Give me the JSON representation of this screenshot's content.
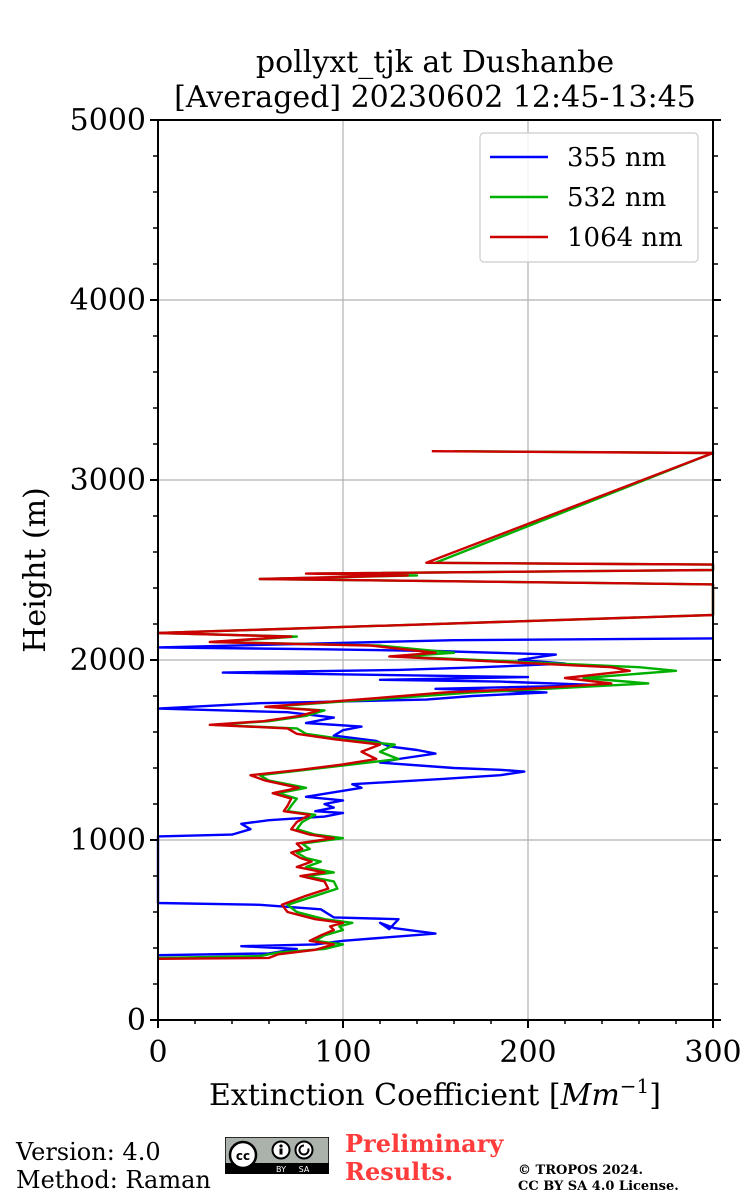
{
  "chart_data": {
    "type": "line",
    "title_line1": "pollyxt_tjk at Dushanbe",
    "title_line2": "[Averaged] 20230602 12:45-13:45",
    "xlabel": "Extinction Coefficient [",
    "xlabel_unit": "Mm",
    "xlabel_exp": "−1",
    "xlabel_close": "]",
    "ylabel": "Height (m)",
    "xlim": [
      0,
      300
    ],
    "ylim": [
      0,
      5000
    ],
    "xticks": [
      0,
      100,
      200,
      300
    ],
    "xtick_labels": [
      "0",
      "100",
      "200",
      "300"
    ],
    "yticks": [
      0,
      1000,
      2000,
      3000,
      4000,
      5000
    ],
    "ytick_labels": [
      "0",
      "1000",
      "2000",
      "3000",
      "4000",
      "5000"
    ],
    "grid": true,
    "legend_position": "top-right",
    "series": [
      {
        "name": "355 nm",
        "color": "#0000ff",
        "points": [
          [
            0,
            360
          ],
          [
            60,
            370
          ],
          [
            75,
            395
          ],
          [
            45,
            410
          ],
          [
            85,
            420
          ],
          [
            100,
            440
          ],
          [
            150,
            480
          ],
          [
            128,
            510
          ],
          [
            120,
            540
          ],
          [
            125,
            505
          ],
          [
            130,
            560
          ],
          [
            95,
            570
          ],
          [
            88,
            615
          ],
          [
            55,
            640
          ],
          [
            0,
            650
          ],
          [
            0,
            1020
          ],
          [
            40,
            1030
          ],
          [
            50,
            1060
          ],
          [
            45,
            1090
          ],
          [
            60,
            1110
          ],
          [
            90,
            1130
          ],
          [
            100,
            1150
          ],
          [
            85,
            1160
          ],
          [
            95,
            1180
          ],
          [
            90,
            1200
          ],
          [
            100,
            1220
          ],
          [
            80,
            1240
          ],
          [
            92,
            1260
          ],
          [
            110,
            1290
          ],
          [
            105,
            1310
          ],
          [
            155,
            1340
          ],
          [
            185,
            1360
          ],
          [
            198,
            1380
          ],
          [
            185,
            1390
          ],
          [
            160,
            1400
          ],
          [
            120,
            1430
          ],
          [
            130,
            1450
          ],
          [
            150,
            1480
          ],
          [
            140,
            1500
          ],
          [
            125,
            1520
          ],
          [
            118,
            1550
          ],
          [
            95,
            1580
          ],
          [
            100,
            1610
          ],
          [
            110,
            1630
          ],
          [
            80,
            1650
          ],
          [
            95,
            1680
          ],
          [
            70,
            1710
          ],
          [
            0,
            1730
          ],
          [
            55,
            1760
          ],
          [
            100,
            1770
          ],
          [
            145,
            1780
          ],
          [
            170,
            1800
          ],
          [
            210,
            1820
          ],
          [
            150,
            1840
          ],
          [
            240,
            1860
          ],
          [
            185,
            1880
          ],
          [
            120,
            1890
          ],
          [
            200,
            1905
          ],
          [
            35,
            1930
          ],
          [
            130,
            1945
          ],
          [
            175,
            1960
          ],
          [
            220,
            1980
          ],
          [
            195,
            2000
          ],
          [
            215,
            2030
          ],
          [
            150,
            2050
          ],
          [
            85,
            2060
          ],
          [
            0,
            2070
          ],
          [
            120,
            2100
          ],
          [
            160,
            2110
          ],
          [
            300,
            2120
          ]
        ]
      },
      {
        "name": "532 nm",
        "color": "#00b000",
        "points": [
          [
            0,
            345
          ],
          [
            55,
            355
          ],
          [
            65,
            375
          ],
          [
            90,
            395
          ],
          [
            100,
            420
          ],
          [
            85,
            440
          ],
          [
            90,
            470
          ],
          [
            100,
            500
          ],
          [
            98,
            520
          ],
          [
            105,
            540
          ],
          [
            90,
            560
          ],
          [
            75,
            600
          ],
          [
            70,
            640
          ],
          [
            85,
            690
          ],
          [
            97,
            730
          ],
          [
            95,
            770
          ],
          [
            80,
            800
          ],
          [
            95,
            820
          ],
          [
            80,
            850
          ],
          [
            88,
            880
          ],
          [
            80,
            900
          ],
          [
            75,
            930
          ],
          [
            82,
            950
          ],
          [
            78,
            980
          ],
          [
            100,
            1010
          ],
          [
            85,
            1030
          ],
          [
            75,
            1060
          ],
          [
            78,
            1100
          ],
          [
            85,
            1140
          ],
          [
            70,
            1160
          ],
          [
            72,
            1190
          ],
          [
            75,
            1230
          ],
          [
            65,
            1260
          ],
          [
            80,
            1290
          ],
          [
            60,
            1330
          ],
          [
            55,
            1360
          ],
          [
            80,
            1390
          ],
          [
            105,
            1420
          ],
          [
            130,
            1450
          ],
          [
            120,
            1490
          ],
          [
            128,
            1530
          ],
          [
            100,
            1560
          ],
          [
            80,
            1590
          ],
          [
            75,
            1620
          ],
          [
            30,
            1640
          ],
          [
            60,
            1660
          ],
          [
            80,
            1690
          ],
          [
            90,
            1720
          ],
          [
            60,
            1740
          ],
          [
            100,
            1770
          ],
          [
            130,
            1790
          ],
          [
            170,
            1820
          ],
          [
            210,
            1840
          ],
          [
            265,
            1870
          ],
          [
            230,
            1900
          ],
          [
            280,
            1940
          ],
          [
            260,
            1960
          ],
          [
            195,
            1990
          ],
          [
            130,
            2020
          ],
          [
            160,
            2040
          ],
          [
            120,
            2080
          ],
          [
            30,
            2100
          ],
          [
            75,
            2130
          ],
          [
            0,
            2150
          ],
          [
            300,
            2250
          ],
          [
            300,
            2420
          ],
          [
            55,
            2450
          ],
          [
            140,
            2470
          ],
          [
            85,
            2480
          ],
          [
            300,
            2500
          ],
          [
            300,
            2530
          ],
          [
            150,
            2540
          ],
          [
            300,
            3150
          ],
          [
            160,
            3160
          ]
        ]
      },
      {
        "name": "1064 nm",
        "color": "#cc0000",
        "points": [
          [
            0,
            340
          ],
          [
            60,
            345
          ],
          [
            65,
            365
          ],
          [
            85,
            390
          ],
          [
            95,
            420
          ],
          [
            82,
            440
          ],
          [
            88,
            470
          ],
          [
            95,
            500
          ],
          [
            93,
            520
          ],
          [
            100,
            540
          ],
          [
            85,
            560
          ],
          [
            70,
            600
          ],
          [
            67,
            640
          ],
          [
            80,
            690
          ],
          [
            92,
            730
          ],
          [
            90,
            770
          ],
          [
            77,
            800
          ],
          [
            90,
            820
          ],
          [
            75,
            850
          ],
          [
            83,
            880
          ],
          [
            77,
            900
          ],
          [
            72,
            930
          ],
          [
            78,
            950
          ],
          [
            75,
            980
          ],
          [
            95,
            1010
          ],
          [
            82,
            1030
          ],
          [
            72,
            1060
          ],
          [
            75,
            1100
          ],
          [
            82,
            1140
          ],
          [
            68,
            1160
          ],
          [
            70,
            1190
          ],
          [
            72,
            1230
          ],
          [
            62,
            1260
          ],
          [
            76,
            1290
          ],
          [
            58,
            1330
          ],
          [
            50,
            1360
          ],
          [
            77,
            1390
          ],
          [
            100,
            1420
          ],
          [
            118,
            1450
          ],
          [
            110,
            1490
          ],
          [
            120,
            1530
          ],
          [
            95,
            1560
          ],
          [
            75,
            1590
          ],
          [
            70,
            1620
          ],
          [
            28,
            1640
          ],
          [
            57,
            1660
          ],
          [
            77,
            1690
          ],
          [
            87,
            1720
          ],
          [
            58,
            1740
          ],
          [
            95,
            1770
          ],
          [
            120,
            1790
          ],
          [
            155,
            1820
          ],
          [
            200,
            1840
          ],
          [
            245,
            1870
          ],
          [
            220,
            1900
          ],
          [
            255,
            1940
          ],
          [
            245,
            1960
          ],
          [
            185,
            1990
          ],
          [
            125,
            2020
          ],
          [
            150,
            2040
          ],
          [
            115,
            2080
          ],
          [
            28,
            2100
          ],
          [
            72,
            2130
          ],
          [
            0,
            2150
          ],
          [
            300,
            2250
          ],
          [
            300,
            2420
          ],
          [
            55,
            2450
          ],
          [
            135,
            2470
          ],
          [
            80,
            2480
          ],
          [
            300,
            2500
          ],
          [
            300,
            2530
          ],
          [
            145,
            2540
          ],
          [
            300,
            3150
          ],
          [
            148,
            3160
          ]
        ]
      }
    ]
  },
  "footer": {
    "version": "Version: 4.0",
    "method": "Method: Raman",
    "prelim_line1": "Preliminary",
    "prelim_line2": "Results.",
    "copyright_line1": "© TROPOS 2024.",
    "copyright_line2": "CC BY SA 4.0 License.",
    "license_badge_label": "cc",
    "license_by": "BY",
    "license_sa": "SA"
  }
}
